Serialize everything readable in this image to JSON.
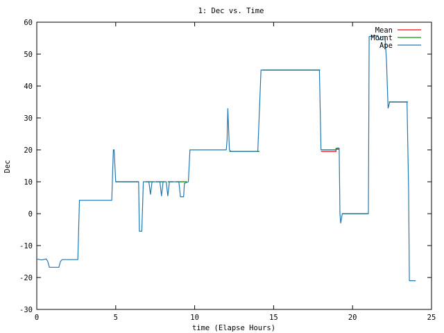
{
  "chart_data": {
    "type": "line",
    "title": "1: Dec vs. Time",
    "xlabel": "time (Elapse Hours)",
    "ylabel": "Dec",
    "xlim": [
      0,
      25
    ],
    "ylim": [
      -30,
      60
    ],
    "xticks": [
      0,
      5,
      10,
      15,
      20,
      25
    ],
    "yticks": [
      -30,
      -20,
      -10,
      0,
      10,
      20,
      30,
      40,
      50,
      60
    ],
    "grid": false,
    "legend_position": "top-right",
    "series": [
      {
        "name": "Mean",
        "color": "#ff0000",
        "points": [
          [
            5.0,
            10
          ],
          [
            6.45,
            10
          ],
          [
            null,
            null
          ],
          [
            6.9,
            10
          ],
          [
            7.4,
            10
          ],
          [
            null,
            null
          ],
          [
            7.55,
            10
          ],
          [
            8.1,
            10
          ],
          [
            null,
            null
          ],
          [
            8.3,
            10
          ],
          [
            8.65,
            10
          ],
          [
            null,
            null
          ],
          [
            8.8,
            10
          ],
          [
            9.5,
            10
          ],
          [
            null,
            null
          ],
          [
            12.2,
            19.5
          ],
          [
            14.1,
            19.5
          ],
          [
            null,
            null
          ],
          [
            14.3,
            45
          ],
          [
            17.95,
            45
          ],
          [
            null,
            null
          ],
          [
            18.0,
            19.5
          ],
          [
            18.95,
            19.5
          ],
          [
            18.95,
            20.2
          ],
          [
            19.15,
            20.2
          ],
          [
            null,
            null
          ],
          [
            19.35,
            0
          ],
          [
            21.0,
            0
          ],
          [
            null,
            null
          ],
          [
            22.3,
            35
          ],
          [
            23.5,
            35
          ]
        ]
      },
      {
        "name": "Mount",
        "color": "#00a000",
        "points": [
          [
            5.0,
            10
          ],
          [
            6.45,
            10
          ],
          [
            null,
            null
          ],
          [
            6.9,
            10
          ],
          [
            7.4,
            10
          ],
          [
            null,
            null
          ],
          [
            7.55,
            10
          ],
          [
            8.1,
            10
          ],
          [
            null,
            null
          ],
          [
            8.3,
            10
          ],
          [
            8.65,
            10
          ],
          [
            null,
            null
          ],
          [
            8.8,
            10
          ],
          [
            9.5,
            10
          ],
          [
            null,
            null
          ],
          [
            12.2,
            19.5
          ],
          [
            14.1,
            19.5
          ],
          [
            null,
            null
          ],
          [
            14.3,
            45
          ],
          [
            17.95,
            45
          ],
          [
            null,
            null
          ],
          [
            18.0,
            20
          ],
          [
            18.95,
            20
          ],
          [
            18.95,
            20.5
          ],
          [
            19.15,
            20.5
          ],
          [
            null,
            null
          ],
          [
            19.35,
            0
          ],
          [
            21.0,
            0
          ],
          [
            null,
            null
          ],
          [
            22.3,
            35
          ],
          [
            23.5,
            35
          ]
        ]
      },
      {
        "name": "Ape",
        "color": "#1f77b4",
        "points": [
          [
            0,
            -14.2
          ],
          [
            0.3,
            -14.5
          ],
          [
            0.6,
            -14.2
          ],
          [
            0.7,
            -15
          ],
          [
            0.8,
            -16.8
          ],
          [
            1.4,
            -16.8
          ],
          [
            1.5,
            -15
          ],
          [
            1.6,
            -14.4
          ],
          [
            2.6,
            -14.4
          ],
          [
            2.7,
            4.2
          ],
          [
            4.75,
            4.2
          ],
          [
            4.85,
            20
          ],
          [
            4.9,
            20
          ],
          [
            5.0,
            10
          ],
          [
            6.45,
            10
          ],
          [
            6.5,
            -5.5
          ],
          [
            6.65,
            -5.5
          ],
          [
            6.75,
            10
          ],
          [
            7.1,
            10
          ],
          [
            7.2,
            6
          ],
          [
            7.3,
            10
          ],
          [
            7.8,
            10
          ],
          [
            7.9,
            5.5
          ],
          [
            8.0,
            10
          ],
          [
            8.2,
            10
          ],
          [
            8.3,
            5.5
          ],
          [
            8.4,
            10
          ],
          [
            8.9,
            10
          ],
          [
            9.0,
            10
          ],
          [
            9.1,
            5.3
          ],
          [
            9.3,
            5.3
          ],
          [
            9.35,
            9.5
          ],
          [
            9.6,
            10
          ],
          [
            9.7,
            20
          ],
          [
            12.0,
            20
          ],
          [
            12.05,
            23
          ],
          [
            12.1,
            33
          ],
          [
            12.2,
            20
          ],
          [
            12.3,
            19.5
          ],
          [
            14.0,
            19.5
          ],
          [
            14.2,
            45
          ],
          [
            17.9,
            45
          ],
          [
            18.0,
            20
          ],
          [
            18.95,
            20
          ],
          [
            19.05,
            20.6
          ],
          [
            19.15,
            20.5
          ],
          [
            19.2,
            0
          ],
          [
            19.25,
            -3
          ],
          [
            19.35,
            0
          ],
          [
            21.0,
            0
          ],
          [
            21.05,
            55.5
          ],
          [
            21.6,
            55.8
          ],
          [
            21.7,
            54.5
          ],
          [
            21.85,
            55.5
          ],
          [
            22.05,
            55.5
          ],
          [
            22.15,
            48
          ],
          [
            22.2,
            40
          ],
          [
            22.25,
            33
          ],
          [
            22.35,
            35
          ],
          [
            23.45,
            35
          ],
          [
            23.55,
            7
          ],
          [
            23.6,
            -21
          ],
          [
            24.0,
            -21
          ]
        ]
      }
    ]
  }
}
